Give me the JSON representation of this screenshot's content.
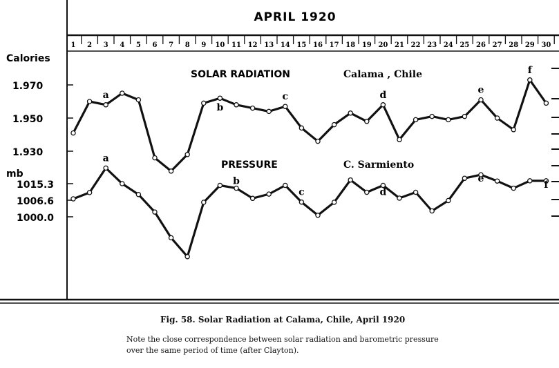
{
  "chart_data": {
    "type": "line",
    "title": "APRIL 1920",
    "x": [
      1,
      2,
      3,
      4,
      5,
      6,
      7,
      8,
      9,
      10,
      11,
      12,
      13,
      14,
      15,
      16,
      17,
      18,
      19,
      20,
      21,
      22,
      23,
      24,
      25,
      26,
      27,
      28,
      29,
      30
    ],
    "panels": [
      {
        "title": "SOLAR RADIATION",
        "location": "Calama , Chile",
        "ylabel": "Calories",
        "yticks": [
          "1.970",
          "1.950",
          "1.930"
        ],
        "ylim": [
          1.922,
          1.983
        ],
        "values": [
          1.941,
          1.96,
          1.958,
          1.965,
          1.961,
          1.926,
          1.918,
          1.928,
          1.959,
          1.962,
          1.958,
          1.956,
          1.954,
          1.957,
          1.944,
          1.936,
          1.946,
          1.953,
          1.948,
          1.958,
          1.937,
          1.949,
          1.951,
          1.949,
          1.951,
          1.961,
          1.95,
          1.943,
          1.973,
          1.959
        ],
        "annotations": [
          {
            "label": "a",
            "day": 3
          },
          {
            "label": "b",
            "day": 10
          },
          {
            "label": "c",
            "day": 14
          },
          {
            "label": "d",
            "day": 20
          },
          {
            "label": "e",
            "day": 26
          },
          {
            "label": "f",
            "day": 29
          }
        ]
      },
      {
        "title": "PRESSURE",
        "location": "C. Sarmiento",
        "ylabel": "mb",
        "yticks": [
          "1015.3",
          "1006.6",
          "1000.0"
        ],
        "ylim": [
          980.0,
          1023.0
        ],
        "values": [
          1008.3,
          1011.2,
          1022.5,
          1015.3,
          1010.3,
          1002.2,
          990.3,
          981.6,
          1006.7,
          1014.5,
          1013.2,
          1008.5,
          1010.5,
          1014.5,
          1006.8,
          1000.7,
          1006.7,
          1017.0,
          1011.3,
          1014.5,
          1008.6,
          1011.3,
          1002.7,
          1007.5,
          1017.8,
          1019.4,
          1016.5,
          1013.2,
          1016.6,
          1016.6
        ],
        "annotations": [
          {
            "label": "a",
            "day": 3
          },
          {
            "label": "b",
            "day": 11
          },
          {
            "label": "c",
            "day": 15
          },
          {
            "label": "d",
            "day": 20
          },
          {
            "label": "e",
            "day": 26
          },
          {
            "label": "f",
            "day": 30
          }
        ]
      }
    ],
    "grid": false
  },
  "caption": {
    "title": "Fig. 58.   Solar Radiation at Calama, Chile, April 1920",
    "note": "Note the close correspondence between solar radiation and barometric pressure over the same period of time (after Clayton)."
  },
  "colors": {
    "ink": "#111111",
    "paper": "#ffffff"
  }
}
